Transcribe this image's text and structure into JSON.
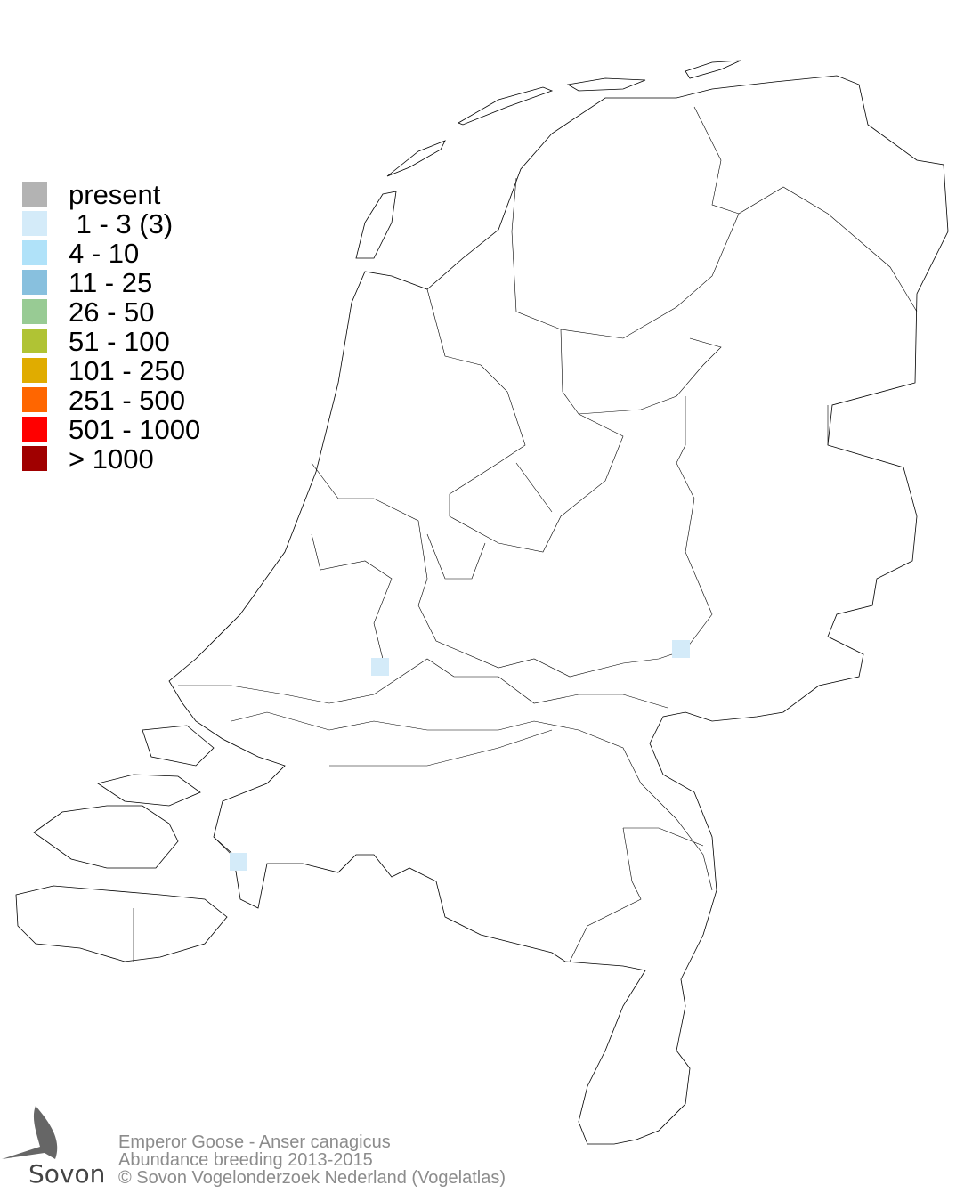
{
  "legend": {
    "items": [
      {
        "label": "present",
        "color": "#b3b3b3"
      },
      {
        "label": " 1 - 3 (3)",
        "color": "#d4ebf9"
      },
      {
        "label": "4 - 10",
        "color": "#b0e2f9"
      },
      {
        "label": "11 - 25",
        "color": "#88c0de"
      },
      {
        "label": "26 - 50",
        "color": "#98cb94"
      },
      {
        "label": "51 - 100",
        "color": "#b0c334"
      },
      {
        "label": "101 - 250",
        "color": "#e0ac00"
      },
      {
        "label": "251 - 500",
        "color": "#ff6600"
      },
      {
        "label": "501 - 1000",
        "color": "#ff0000"
      },
      {
        "label": "> 1000",
        "color": "#a00000"
      }
    ]
  },
  "map": {
    "occupied_squares_class": "1 - 3 (3)",
    "square_color": "#d4ebf9"
  },
  "footer": {
    "species": "Emperor Goose - Anser canagicus",
    "subtitle": "Abundance breeding 2013-2015",
    "copyright": "© Sovon Vogelonderzoek Nederland (Vogelatlas)"
  },
  "logo": {
    "text": "Sovon"
  }
}
